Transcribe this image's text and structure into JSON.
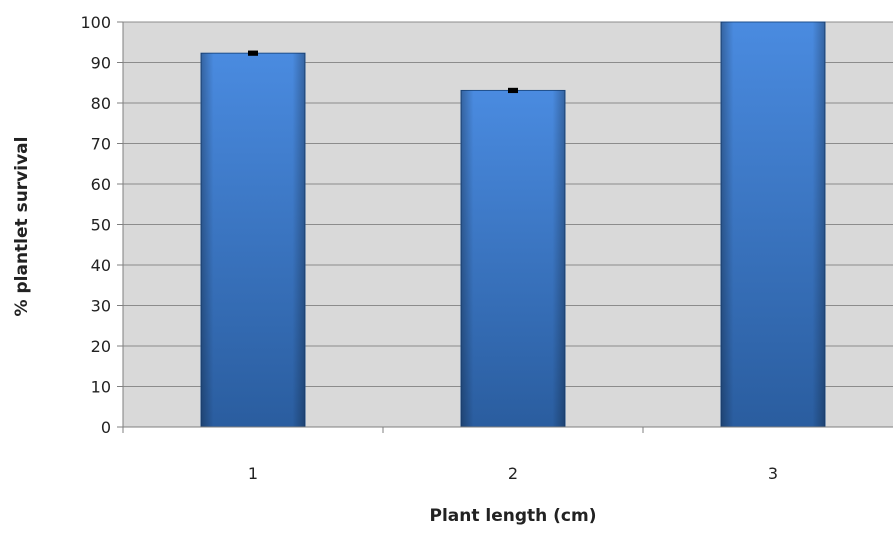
{
  "chart_data": {
    "type": "bar",
    "title": "",
    "xlabel": "Plant length (cm)",
    "ylabel": "% plantlet survival",
    "categories": [
      "1",
      "2",
      "3"
    ],
    "values": [
      92.3,
      83.1,
      100
    ],
    "error": [
      0.4,
      0.4,
      0
    ],
    "ylim": [
      0,
      100
    ],
    "yticks": [
      0,
      10,
      20,
      30,
      40,
      50,
      60,
      70,
      80,
      90,
      100
    ],
    "grid": true,
    "legend": "none",
    "colors": {
      "plot_bg": "#d9d9d9",
      "bar_top": "#4a8be0",
      "bar_bottom": "#2a5d9f",
      "bar_edge": "#1f4f8c",
      "grid": "#8c8c8c",
      "error_bar": "#000000"
    }
  }
}
